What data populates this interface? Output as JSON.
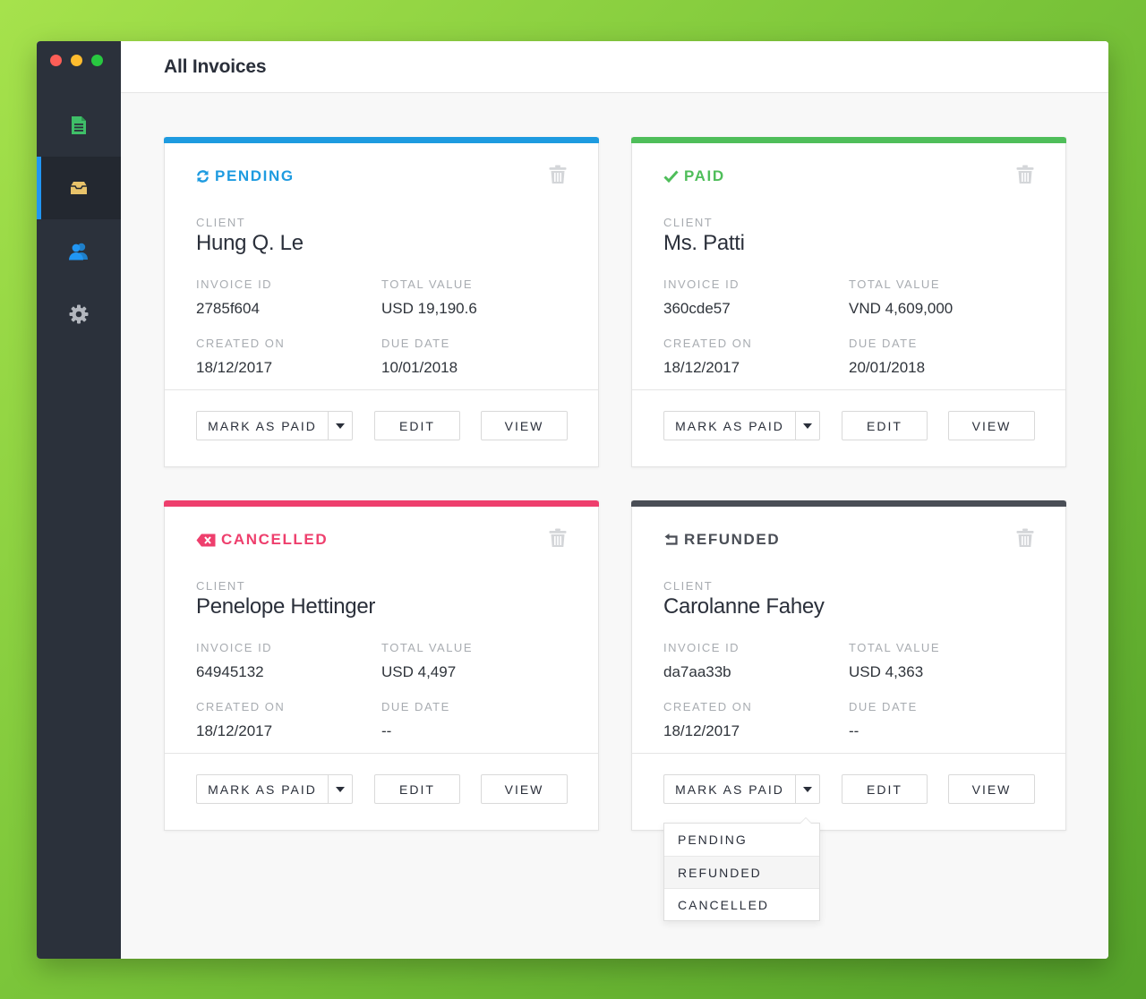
{
  "page": {
    "title": "All Invoices"
  },
  "sidebar": {
    "items": [
      {
        "name": "invoices",
        "icon": "document-icon",
        "color": "#3fbf68",
        "active": false
      },
      {
        "name": "inbox",
        "icon": "inbox-icon",
        "color": "#e8c36a",
        "active": true
      },
      {
        "name": "clients",
        "icon": "users-icon",
        "color": "#2196f3",
        "active": false
      },
      {
        "name": "settings",
        "icon": "gear-icon",
        "color": "#b3b7be",
        "active": false
      }
    ]
  },
  "labels": {
    "client": "CLIENT",
    "invoice_id": "INVOICE ID",
    "total_value": "TOTAL VALUE",
    "created_on": "CREATED ON",
    "due_date": "DUE DATE",
    "mark_as_paid": "MARK AS PAID",
    "edit": "EDIT",
    "view": "VIEW"
  },
  "colors": {
    "pending": "#1e9be0",
    "paid": "#4fbe5a",
    "cancelled": "#ee3f6d",
    "refunded": "#4a4e56"
  },
  "invoices": [
    {
      "status": "PENDING",
      "status_icon": "refresh-icon",
      "client": "Hung Q. Le",
      "invoice_id": "2785f604",
      "total_value": "USD 19,190.6",
      "created_on": "18/12/2017",
      "due_date": "10/01/2018"
    },
    {
      "status": "PAID",
      "status_icon": "check-icon",
      "client": "Ms. Patti",
      "invoice_id": "360cde57",
      "total_value": "VND 4,609,000",
      "created_on": "18/12/2017",
      "due_date": "20/01/2018"
    },
    {
      "status": "CANCELLED",
      "status_icon": "cancel-icon",
      "client": "Penelope Hettinger",
      "invoice_id": "64945132",
      "total_value": "USD 4,497",
      "created_on": "18/12/2017",
      "due_date": "--"
    },
    {
      "status": "REFUNDED",
      "status_icon": "refund-icon",
      "client": "Carolanne Fahey",
      "invoice_id": "da7aa33b",
      "total_value": "USD 4,363",
      "created_on": "18/12/2017",
      "due_date": "--"
    }
  ],
  "status_dropdown": {
    "options": [
      "PENDING",
      "REFUNDED",
      "CANCELLED"
    ],
    "highlighted": "REFUNDED"
  }
}
